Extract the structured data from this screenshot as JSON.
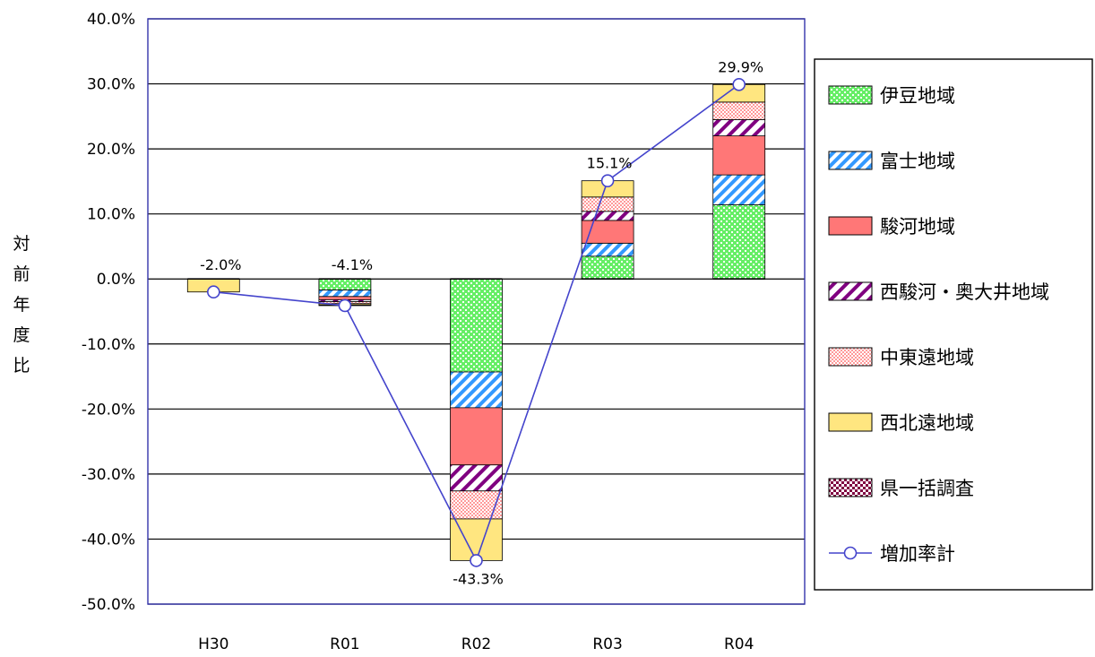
{
  "chart_data": {
    "type": "bar",
    "stacked": true,
    "categories": [
      "H30",
      "R01",
      "R02",
      "R03",
      "R04"
    ],
    "ylabel": "対前年度比",
    "ylim": [
      -50,
      40
    ],
    "ytick_step": 10,
    "ytick_format": "percent_1dp",
    "grid": true,
    "legend_position": "right",
    "series": [
      {
        "name": "伊豆地域",
        "color": "#33cc33",
        "pattern": "dots-green",
        "values": [
          0,
          -1.7,
          -14.3,
          3.5,
          11.4
        ]
      },
      {
        "name": "富士地域",
        "color": "#3399ff",
        "pattern": "diag-blue",
        "values": [
          0,
          -1.0,
          -5.5,
          2.0,
          4.6
        ]
      },
      {
        "name": "駿河地域",
        "color": "#ff7777",
        "pattern": "solid-red",
        "values": [
          0,
          -0.5,
          -8.8,
          3.5,
          6.0
        ]
      },
      {
        "name": "西駿河・奥大井地域",
        "color": "#800080",
        "pattern": "diag-purple",
        "values": [
          0,
          -0.3,
          -4.0,
          1.4,
          2.5
        ]
      },
      {
        "name": "中東遠地域",
        "color": "#ff9999",
        "pattern": "dots-pink",
        "values": [
          0,
          -0.3,
          -4.3,
          2.2,
          2.7
        ]
      },
      {
        "name": "西北遠地域",
        "color": "#ffe680",
        "pattern": "solid-yellow",
        "values": [
          -2.0,
          -0.2,
          -6.4,
          2.5,
          2.7
        ]
      },
      {
        "name": "県一括調査",
        "color": "#800040",
        "pattern": "check-maroon",
        "values": [
          0,
          -0.1,
          0,
          0,
          0
        ]
      }
    ],
    "line_series": {
      "name": "増加率計",
      "color": "#4444cc",
      "values": [
        -2.0,
        -4.1,
        -43.3,
        15.1,
        29.9
      ],
      "labels": [
        "-2.0%",
        "-4.1%",
        "-43.3%",
        "15.1%",
        "29.9%"
      ]
    }
  }
}
